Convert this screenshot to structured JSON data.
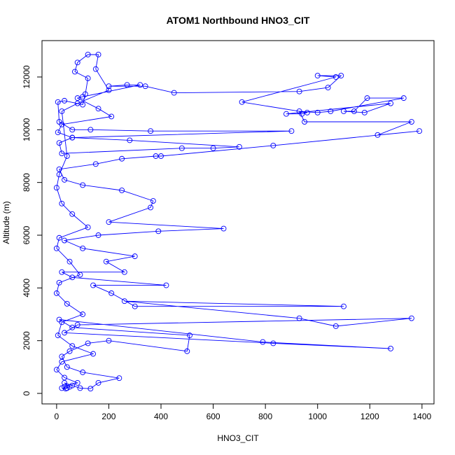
{
  "chart_data": {
    "type": "line",
    "markers": true,
    "title": "ATOM1 Northbound HNO3_CIT",
    "x_label": "HNO3_CIT",
    "y_label": "Altitude (m)",
    "color": "#0000ff",
    "x": [
      20,
      35,
      50,
      30,
      60,
      90,
      130,
      160,
      240,
      100,
      40,
      20,
      50,
      120,
      200,
      500,
      510,
      60,
      10,
      790,
      1280,
      830,
      30,
      80,
      1360,
      1070,
      930,
      260,
      1100,
      300,
      210,
      140,
      420,
      60,
      20,
      260,
      190,
      300,
      100,
      30,
      160,
      390,
      640,
      200,
      360,
      370,
      250,
      100,
      30,
      10,
      150,
      250,
      380,
      400,
      830,
      1390,
      1230,
      1360,
      950,
      930,
      1000,
      1050,
      1330,
      1190,
      1140,
      1100,
      1180,
      1280,
      880,
      940,
      960,
      710,
      1070,
      1000,
      1090,
      1040,
      930,
      450,
      340,
      200,
      270,
      320,
      100,
      80,
      160,
      210,
      20,
      5,
      60,
      10,
      20,
      480,
      600,
      700,
      280,
      60,
      900,
      360,
      130,
      60,
      10,
      5,
      30,
      100,
      110,
      120,
      70,
      80,
      120,
      160,
      150,
      200,
      80,
      20,
      40,
      10,
      0,
      20,
      60,
      120,
      10,
      0,
      50,
      90,
      10,
      0,
      40,
      100,
      20,
      5,
      60,
      140,
      20,
      0,
      30,
      80,
      30,
      40
    ],
    "values": [
      200,
      180,
      250,
      400,
      300,
      200,
      180,
      400,
      580,
      800,
      1000,
      1400,
      1600,
      1900,
      2000,
      1600,
      2200,
      2500,
      2800,
      1950,
      1700,
      1900,
      2300,
      2600,
      2850,
      2550,
      2850,
      3500,
      3300,
      3300,
      3800,
      4100,
      4100,
      4400,
      4600,
      4600,
      5000,
      5200,
      5500,
      5800,
      6000,
      6150,
      6250,
      6500,
      7050,
      7300,
      7700,
      7900,
      8100,
      8500,
      8700,
      8900,
      9000,
      9000,
      9400,
      9950,
      9800,
      10300,
      10300,
      10700,
      10650,
      10700,
      11200,
      11200,
      10700,
      10700,
      10650,
      11000,
      10600,
      10600,
      10650,
      11050,
      12000,
      12050,
      12050,
      11600,
      11450,
      11400,
      11650,
      11650,
      11700,
      11700,
      11250,
      11200,
      10800,
      10500,
      10200,
      9900,
      9700,
      9500,
      9100,
      9300,
      9300,
      9350,
      9600,
      9700,
      9950,
      9950,
      10000,
      10000,
      10300,
      11050,
      11100,
      10950,
      11350,
      11950,
      12200,
      12550,
      12850,
      12850,
      12300,
      11500,
      11000,
      10700,
      9000,
      8300,
      7800,
      7200,
      6800,
      6300,
      5900,
      5500,
      5000,
      4500,
      4200,
      3800,
      3400,
      3000,
      2700,
      2200,
      1800,
      1500,
      1200,
      900,
      600,
      400,
      250,
      200
    ],
    "xlim": [
      -56,
      1446
    ],
    "ylim": [
      -398,
      13380
    ],
    "xticks": [
      0,
      200,
      400,
      600,
      800,
      1000,
      1200,
      1400
    ],
    "yticks": [
      0,
      2000,
      4000,
      6000,
      8000,
      10000,
      12000
    ]
  }
}
